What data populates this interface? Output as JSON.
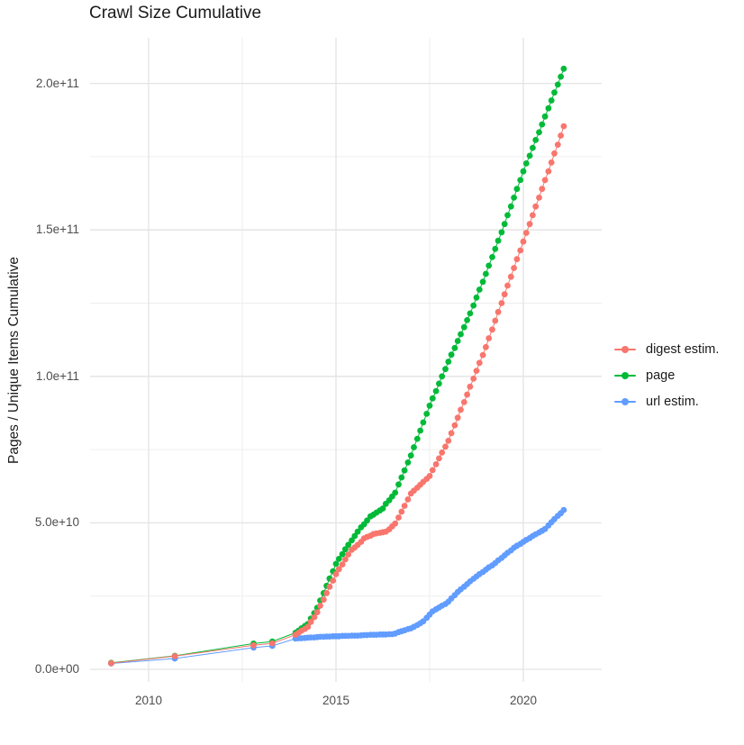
{
  "chart_data": {
    "type": "scatter",
    "title": "Crawl Size Cumulative",
    "xlabel": "",
    "ylabel": "Pages / Unique Items Cumulative",
    "x_unit": "year",
    "value_unit_multiplier": 1000000000,
    "xlim": [
      2008.4,
      2021.9
    ],
    "ylim_e9": [
      0,
      215
    ],
    "grid": "major and minor, light gray on white",
    "legend_position": "right-center",
    "x_tick_values": [
      2010,
      2015,
      2020
    ],
    "x_tick_labels": [
      "2010",
      "2015",
      "2020"
    ],
    "y_tick_values_e9": [
      0,
      50,
      100,
      150,
      200
    ],
    "y_tick_labels": [
      "0.0e+00",
      "5.0e+10",
      "1.0e+11",
      "1.5e+11",
      "2.0e+11"
    ],
    "marker": "point",
    "line": "thin connecting line",
    "series": [
      {
        "name": "digest estim.",
        "color": "#F8766D",
        "points": [
          [
            2009.0,
            2.1
          ],
          [
            2010.7,
            4.5
          ],
          [
            2012.8,
            8.2
          ],
          [
            2013.3,
            8.9
          ],
          [
            2013.92,
            11.8
          ],
          [
            2014.0,
            12.5
          ],
          [
            2014.08,
            13.2
          ],
          [
            2014.17,
            13.8
          ],
          [
            2014.25,
            14.5
          ],
          [
            2014.33,
            16.2
          ],
          [
            2014.42,
            17.8
          ],
          [
            2014.5,
            19.5
          ],
          [
            2014.58,
            21.7
          ],
          [
            2014.67,
            23.8
          ],
          [
            2014.75,
            26
          ],
          [
            2014.83,
            28.2
          ],
          [
            2014.92,
            30.3
          ],
          [
            2015.0,
            32.5
          ],
          [
            2015.08,
            34.2
          ],
          [
            2015.17,
            35.8
          ],
          [
            2015.25,
            37.5
          ],
          [
            2015.33,
            39.2
          ],
          [
            2015.42,
            40.8
          ],
          [
            2015.5,
            41.6
          ],
          [
            2015.58,
            42.5
          ],
          [
            2015.67,
            43.5
          ],
          [
            2015.75,
            44.7
          ],
          [
            2015.83,
            45.2
          ],
          [
            2015.92,
            45.6
          ],
          [
            2016.0,
            46.2
          ],
          [
            2016.08,
            46.4
          ],
          [
            2016.17,
            46.6
          ],
          [
            2016.25,
            46.8
          ],
          [
            2016.33,
            47
          ],
          [
            2016.42,
            47.8
          ],
          [
            2016.5,
            48.8
          ],
          [
            2016.58,
            49.8
          ],
          [
            2016.67,
            51.8
          ],
          [
            2016.75,
            53.8
          ],
          [
            2016.83,
            55.8
          ],
          [
            2016.92,
            58
          ],
          [
            2017.0,
            60
          ],
          [
            2017.08,
            61
          ],
          [
            2017.17,
            62
          ],
          [
            2017.25,
            63
          ],
          [
            2017.33,
            64
          ],
          [
            2017.42,
            65
          ],
          [
            2017.5,
            66
          ],
          [
            2017.58,
            68
          ],
          [
            2017.67,
            70
          ],
          [
            2017.75,
            72
          ],
          [
            2017.83,
            74
          ],
          [
            2017.92,
            76
          ],
          [
            2018.0,
            78
          ],
          [
            2018.08,
            80.6
          ],
          [
            2018.17,
            83.3
          ],
          [
            2018.25,
            85.9
          ],
          [
            2018.33,
            88.6
          ],
          [
            2018.42,
            91.2
          ],
          [
            2018.5,
            93.8
          ],
          [
            2018.58,
            96.5
          ],
          [
            2018.67,
            99.2
          ],
          [
            2018.75,
            101.9
          ],
          [
            2018.83,
            104.6
          ],
          [
            2018.92,
            107.3
          ],
          [
            2019.0,
            110
          ],
          [
            2019.08,
            113
          ],
          [
            2019.17,
            116
          ],
          [
            2019.25,
            119
          ],
          [
            2019.33,
            122
          ],
          [
            2019.42,
            125
          ],
          [
            2019.5,
            128
          ],
          [
            2019.58,
            131
          ],
          [
            2019.67,
            134
          ],
          [
            2019.75,
            137
          ],
          [
            2019.83,
            140
          ],
          [
            2019.92,
            143
          ],
          [
            2020.0,
            146
          ],
          [
            2020.08,
            149
          ],
          [
            2020.17,
            152
          ],
          [
            2020.25,
            155
          ],
          [
            2020.33,
            158
          ],
          [
            2020.42,
            161
          ],
          [
            2020.5,
            164
          ],
          [
            2020.58,
            167
          ],
          [
            2020.67,
            170
          ],
          [
            2020.75,
            173
          ],
          [
            2020.83,
            176.1
          ],
          [
            2020.92,
            179.1
          ],
          [
            2021.0,
            182.2
          ],
          [
            2021.08,
            185.4
          ]
        ]
      },
      {
        "name": "page",
        "color": "#00BA38",
        "points": [
          [
            2009.0,
            2.2
          ],
          [
            2010.7,
            4.6
          ],
          [
            2012.8,
            8.8
          ],
          [
            2013.3,
            9.5
          ],
          [
            2013.92,
            12.5
          ],
          [
            2014.0,
            13.2
          ],
          [
            2014.08,
            14
          ],
          [
            2014.17,
            14.8
          ],
          [
            2014.25,
            15.5
          ],
          [
            2014.33,
            17.3
          ],
          [
            2014.42,
            19.2
          ],
          [
            2014.5,
            21
          ],
          [
            2014.58,
            23.5
          ],
          [
            2014.67,
            26
          ],
          [
            2014.75,
            28.5
          ],
          [
            2014.83,
            31
          ],
          [
            2014.92,
            33.5
          ],
          [
            2015.0,
            36
          ],
          [
            2015.08,
            37.7
          ],
          [
            2015.17,
            39.3
          ],
          [
            2015.25,
            41
          ],
          [
            2015.33,
            42.5
          ],
          [
            2015.42,
            44
          ],
          [
            2015.5,
            45.5
          ],
          [
            2015.58,
            47
          ],
          [
            2015.67,
            48.5
          ],
          [
            2015.75,
            49.5
          ],
          [
            2015.83,
            50.8
          ],
          [
            2015.92,
            52.2
          ],
          [
            2016.0,
            52.8
          ],
          [
            2016.08,
            53.5
          ],
          [
            2016.17,
            54.2
          ],
          [
            2016.25,
            54.9
          ],
          [
            2016.33,
            56.5
          ],
          [
            2016.42,
            57.7
          ],
          [
            2016.5,
            59
          ],
          [
            2016.58,
            60.3
          ],
          [
            2016.67,
            63.1
          ],
          [
            2016.75,
            65.5
          ],
          [
            2016.83,
            67.9
          ],
          [
            2016.92,
            70.6
          ],
          [
            2017.0,
            73
          ],
          [
            2017.08,
            75.8
          ],
          [
            2017.17,
            78.7
          ],
          [
            2017.25,
            81.5
          ],
          [
            2017.33,
            84.3
          ],
          [
            2017.42,
            87.2
          ],
          [
            2017.5,
            90
          ],
          [
            2017.58,
            92.5
          ],
          [
            2017.67,
            95
          ],
          [
            2017.75,
            97.5
          ],
          [
            2017.83,
            100
          ],
          [
            2017.92,
            102.5
          ],
          [
            2018.0,
            105
          ],
          [
            2018.08,
            107.4
          ],
          [
            2018.17,
            109.7
          ],
          [
            2018.25,
            112.1
          ],
          [
            2018.33,
            114.4
          ],
          [
            2018.42,
            116.8
          ],
          [
            2018.5,
            119.2
          ],
          [
            2018.58,
            121.5
          ],
          [
            2018.67,
            124.2
          ],
          [
            2018.75,
            126.9
          ],
          [
            2018.83,
            129.6
          ],
          [
            2018.92,
            132.3
          ],
          [
            2019.0,
            135
          ],
          [
            2019.08,
            137.8
          ],
          [
            2019.17,
            140.7
          ],
          [
            2019.25,
            143.5
          ],
          [
            2019.33,
            146.3
          ],
          [
            2019.42,
            149.2
          ],
          [
            2019.5,
            152
          ],
          [
            2019.58,
            155
          ],
          [
            2019.67,
            158
          ],
          [
            2019.75,
            161
          ],
          [
            2019.83,
            164
          ],
          [
            2019.92,
            167
          ],
          [
            2020.0,
            170
          ],
          [
            2020.08,
            172.7
          ],
          [
            2020.17,
            175.3
          ],
          [
            2020.25,
            178
          ],
          [
            2020.33,
            180.7
          ],
          [
            2020.42,
            183.3
          ],
          [
            2020.5,
            186
          ],
          [
            2020.58,
            188.7
          ],
          [
            2020.67,
            191.5
          ],
          [
            2020.75,
            194.2
          ],
          [
            2020.83,
            196.9
          ],
          [
            2020.92,
            199.6
          ],
          [
            2021.0,
            202.3
          ],
          [
            2021.08,
            205
          ]
        ]
      },
      {
        "name": "url estim.",
        "color": "#619CFF",
        "points": [
          [
            2009.0,
            2
          ],
          [
            2010.7,
            3.7
          ],
          [
            2012.8,
            7.4
          ],
          [
            2013.3,
            8
          ],
          [
            2013.92,
            10.5
          ],
          [
            2014.0,
            10.6
          ],
          [
            2014.08,
            10.6
          ],
          [
            2014.17,
            10.7
          ],
          [
            2014.25,
            10.8
          ],
          [
            2014.33,
            10.9
          ],
          [
            2014.42,
            10.9
          ],
          [
            2014.5,
            11
          ],
          [
            2014.58,
            11.1
          ],
          [
            2014.67,
            11.1
          ],
          [
            2014.75,
            11.2
          ],
          [
            2014.83,
            11.2
          ],
          [
            2014.92,
            11.3
          ],
          [
            2015.0,
            11.3
          ],
          [
            2015.08,
            11.3
          ],
          [
            2015.17,
            11.4
          ],
          [
            2015.25,
            11.4
          ],
          [
            2015.33,
            11.4
          ],
          [
            2015.42,
            11.5
          ],
          [
            2015.5,
            11.5
          ],
          [
            2015.58,
            11.5
          ],
          [
            2015.67,
            11.6
          ],
          [
            2015.75,
            11.7
          ],
          [
            2015.83,
            11.7
          ],
          [
            2015.92,
            11.8
          ],
          [
            2016.0,
            11.8
          ],
          [
            2016.08,
            11.8
          ],
          [
            2016.17,
            11.9
          ],
          [
            2016.25,
            11.9
          ],
          [
            2016.33,
            11.9
          ],
          [
            2016.42,
            12
          ],
          [
            2016.5,
            12
          ],
          [
            2016.58,
            12.2
          ],
          [
            2016.67,
            12.7
          ],
          [
            2016.75,
            13
          ],
          [
            2016.83,
            13.3
          ],
          [
            2016.92,
            13.7
          ],
          [
            2017.0,
            14
          ],
          [
            2017.08,
            14.5
          ],
          [
            2017.17,
            15.1
          ],
          [
            2017.25,
            15.7
          ],
          [
            2017.33,
            16.4
          ],
          [
            2017.42,
            17.6
          ],
          [
            2017.5,
            18.7
          ],
          [
            2017.58,
            19.8
          ],
          [
            2017.67,
            20.5
          ],
          [
            2017.75,
            21.1
          ],
          [
            2017.83,
            21.7
          ],
          [
            2017.92,
            22.3
          ],
          [
            2018.0,
            23.1
          ],
          [
            2018.08,
            24.2
          ],
          [
            2018.17,
            25.3
          ],
          [
            2018.25,
            26.4
          ],
          [
            2018.33,
            27.3
          ],
          [
            2018.42,
            28.2
          ],
          [
            2018.5,
            29.1
          ],
          [
            2018.58,
            30
          ],
          [
            2018.67,
            30.9
          ],
          [
            2018.75,
            31.7
          ],
          [
            2018.83,
            32.5
          ],
          [
            2018.92,
            33.2
          ],
          [
            2019.0,
            34
          ],
          [
            2019.08,
            34.8
          ],
          [
            2019.17,
            35.5
          ],
          [
            2019.25,
            36.3
          ],
          [
            2019.33,
            37.2
          ],
          [
            2019.42,
            38
          ],
          [
            2019.5,
            38.9
          ],
          [
            2019.58,
            39.8
          ],
          [
            2019.67,
            40.6
          ],
          [
            2019.75,
            41.5
          ],
          [
            2019.83,
            42.2
          ],
          [
            2019.92,
            42.8
          ],
          [
            2020.0,
            43.5
          ],
          [
            2020.08,
            44.2
          ],
          [
            2020.17,
            44.8
          ],
          [
            2020.25,
            45.5
          ],
          [
            2020.33,
            46.1
          ],
          [
            2020.42,
            46.7
          ],
          [
            2020.5,
            47.3
          ],
          [
            2020.58,
            47.9
          ],
          [
            2020.67,
            49.1
          ],
          [
            2020.75,
            50.2
          ],
          [
            2020.83,
            51.3
          ],
          [
            2020.92,
            52.4
          ],
          [
            2021.0,
            53.3
          ],
          [
            2021.08,
            54.4
          ]
        ]
      }
    ],
    "style": {
      "grid_major_color": "#E3E3E3",
      "grid_minor_color": "#EDEDED",
      "background": "#FFFFFF",
      "title_color": "#1a1a1a",
      "tick_label_color": "#4d4d4d"
    }
  }
}
